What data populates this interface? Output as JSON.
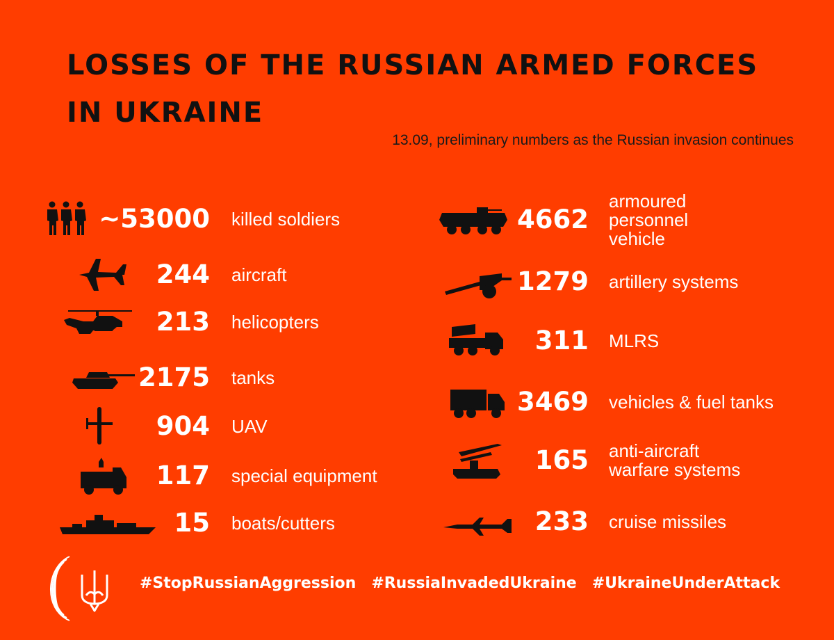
{
  "title": "LOSSES OF THE RUSSIAN ARMED FORCES\nIN UKRAINE",
  "subtitle": "13.09, preliminary numbers as the Russian invasion continues",
  "colors": {
    "background": "#FF3D00",
    "title": "#111111",
    "numbers": "#FFFFFF",
    "icons": "#111111"
  },
  "left_items": [
    {
      "icon": "soldiers-icon",
      "value": "~53000",
      "label": "killed soldiers"
    },
    {
      "icon": "aircraft-icon",
      "value": "244",
      "label": "aircraft"
    },
    {
      "icon": "helicopter-icon",
      "value": "213",
      "label": "helicopters"
    },
    {
      "icon": "tank-icon",
      "value": "2175",
      "label": "tanks"
    },
    {
      "icon": "uav-icon",
      "value": "904",
      "label": "UAV"
    },
    {
      "icon": "special-equipment-icon",
      "value": "117",
      "label": "special equipment"
    },
    {
      "icon": "boat-icon",
      "value": "15",
      "label": "boats/cutters"
    }
  ],
  "right_items": [
    {
      "icon": "apc-icon",
      "value": "4662",
      "label": "armoured\npersonnel\nvehicle"
    },
    {
      "icon": "artillery-icon",
      "value": "1279",
      "label": "artillery systems"
    },
    {
      "icon": "mlrs-icon",
      "value": "311",
      "label": "MLRS"
    },
    {
      "icon": "truck-icon",
      "value": "3469",
      "label": "vehicles & fuel tanks"
    },
    {
      "icon": "anti-aircraft-icon",
      "value": "165",
      "label": "anti-aircraft\nwarfare systems"
    },
    {
      "icon": "cruise-missile-icon",
      "value": "233",
      "label": "cruise missiles"
    }
  ],
  "hashtags": [
    "#StopRussianAggression",
    "#RussiaInvadedUkraine",
    "#UkraineUnderAttack"
  ],
  "footer_icons": [
    "ministry-logo-icon",
    "trident-icon"
  ]
}
